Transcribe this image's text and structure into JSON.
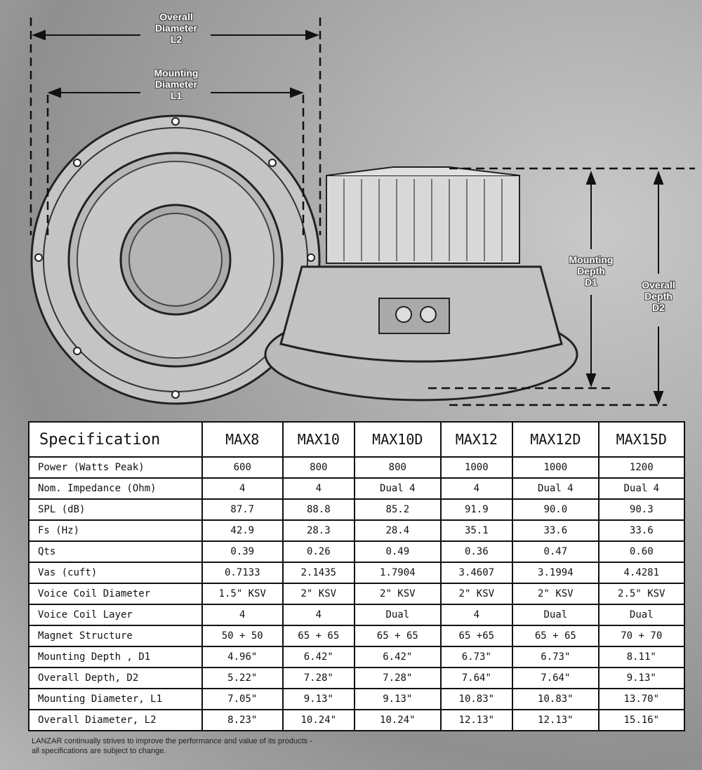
{
  "diagram": {
    "overall_diameter_label": [
      "Overall",
      "Diameter",
      "L2"
    ],
    "mounting_diameter_label": [
      "Mounting",
      "Diameter",
      "L1"
    ],
    "mounting_depth_label": [
      "Mounting",
      "Depth",
      "D1"
    ],
    "overall_depth_label": [
      "Overall",
      "Depth",
      "D2"
    ]
  },
  "table": {
    "header": [
      "Specification",
      "MAX8",
      "MAX10",
      "MAX10D",
      "MAX12",
      "MAX12D",
      "MAX15D"
    ],
    "rows": [
      [
        "Power (Watts Peak)",
        "600",
        "800",
        "800",
        "1000",
        "1000",
        "1200"
      ],
      [
        "Nom. Impedance (Ohm)",
        "4",
        "4",
        "Dual 4",
        "4",
        "Dual 4",
        "Dual 4"
      ],
      [
        "SPL (dB)",
        "87.7",
        "88.8",
        "85.2",
        "91.9",
        "90.0",
        "90.3"
      ],
      [
        "Fs (Hz)",
        "42.9",
        "28.3",
        "28.4",
        "35.1",
        "33.6",
        "33.6"
      ],
      [
        "Qts",
        "0.39",
        "0.26",
        "0.49",
        "0.36",
        "0.47",
        "0.60"
      ],
      [
        "Vas (cuft)",
        "0.7133",
        "2.1435",
        "1.7904",
        "3.4607",
        "3.1994",
        "4.4281"
      ],
      [
        "Voice Coil Diameter",
        "1.5\" KSV",
        "2\" KSV",
        "2\" KSV",
        "2\" KSV",
        "2\" KSV",
        "2.5\" KSV"
      ],
      [
        "Voice Coil Layer",
        "4",
        "4",
        "Dual",
        "4",
        "Dual",
        "Dual"
      ],
      [
        "Magnet Structure",
        "50 + 50",
        "65 + 65",
        "65 + 65",
        "65 +65",
        "65 + 65",
        "70 + 70"
      ],
      [
        "Mounting Depth , D1",
        "4.96\"",
        "6.42\"",
        "6.42\"",
        "6.73\"",
        "6.73\"",
        "8.11\""
      ],
      [
        "Overall Depth, D2",
        "5.22\"",
        "7.28\"",
        "7.28\"",
        "7.64\"",
        "7.64\"",
        "9.13\""
      ],
      [
        "Mounting Diameter, L1",
        "7.05\"",
        "9.13\"",
        "9.13\"",
        "10.83\"",
        "10.83\"",
        "13.70\""
      ],
      [
        "Overall Diameter, L2",
        "8.23\"",
        "10.24\"",
        "10.24\"",
        "12.13\"",
        "12.13\"",
        "15.16\""
      ]
    ]
  },
  "footer": {
    "line1": "LANZAR continually strives to improve the performance and value of its products -",
    "line2": "all specifications are subject to change."
  }
}
